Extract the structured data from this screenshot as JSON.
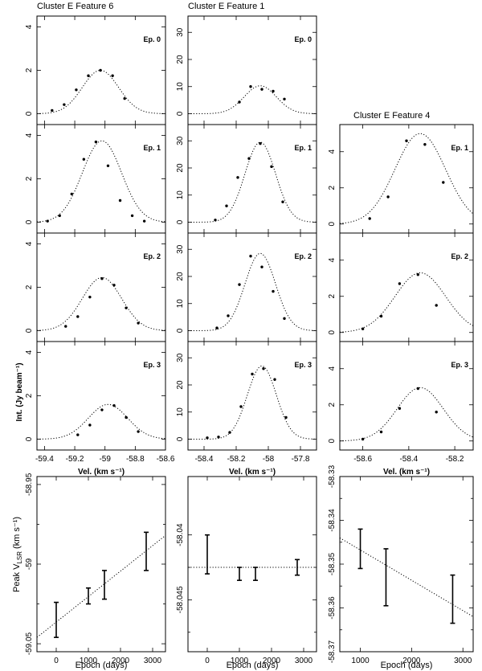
{
  "figure": {
    "ylabel_spectra": "Int. (Jy beam⁻¹)",
    "ylabel_velocity": "Peak V",
    "ylabel_velocity_sub": "LSR",
    "ylabel_velocity_unit": "(km s⁻¹)"
  },
  "chart_data": [
    {
      "type": "line",
      "group": "spectra",
      "column": 0,
      "title": "Cluster E    Feature 6",
      "xlabel": "Vel. (km s⁻¹)",
      "ylabel": "Int. (Jy beam⁻¹)",
      "xlim": [
        -59.45,
        -58.6
      ],
      "ylim": [
        -0.5,
        4.5
      ],
      "xticks": [
        -59.4,
        -59.2,
        -59,
        -58.8,
        -58.6
      ],
      "xticklabels": [
        "-59.4",
        "-59.2",
        "-59",
        "-58.8",
        "-58.6"
      ],
      "yticks": [
        0,
        2,
        4
      ],
      "yticklabels": [
        "0",
        "2",
        "4"
      ],
      "panels": [
        {
          "epoch": "Ep. 0",
          "amp": 2.0,
          "center": -59.03,
          "sigma": 0.12,
          "points_x": [
            -59.35,
            -59.27,
            -59.19,
            -59.11,
            -59.03,
            -58.95,
            -58.87
          ],
          "points_y": [
            0.15,
            0.42,
            1.1,
            1.75,
            2.0,
            1.75,
            0.7
          ]
        },
        {
          "epoch": "Ep. 1",
          "amp": 3.75,
          "center": -59.02,
          "sigma": 0.13,
          "points_x": [
            -59.38,
            -59.3,
            -59.22,
            -59.14,
            -59.06,
            -58.98,
            -58.9,
            -58.82,
            -58.74
          ],
          "points_y": [
            0.05,
            0.3,
            1.3,
            2.9,
            3.7,
            2.6,
            1.0,
            0.3,
            0.05
          ]
        },
        {
          "epoch": "Ep. 2",
          "amp": 2.45,
          "center": -59.02,
          "sigma": 0.13,
          "points_x": [
            -59.26,
            -59.18,
            -59.1,
            -59.02,
            -58.94,
            -58.86,
            -58.78
          ],
          "points_y": [
            0.2,
            0.65,
            1.55,
            2.4,
            2.1,
            1.05,
            0.35
          ]
        },
        {
          "epoch": "Ep. 3",
          "amp": 1.6,
          "center": -58.98,
          "sigma": 0.13,
          "points_x": [
            -59.18,
            -59.1,
            -59.02,
            -58.94,
            -58.86,
            -58.78
          ],
          "points_y": [
            0.2,
            0.65,
            1.35,
            1.55,
            1.0,
            0.35
          ]
        }
      ]
    },
    {
      "type": "line",
      "group": "spectra",
      "column": 1,
      "title": "Cluster E    Feature 1",
      "xlabel": "Vel. (km s⁻¹)",
      "ylabel": "Int. (Jy beam⁻¹)",
      "xlim": [
        -58.5,
        -57.7
      ],
      "ylim": [
        -4,
        36
      ],
      "xticks": [
        -58.4,
        -58.2,
        -58,
        -57.8
      ],
      "xticklabels": [
        "-58.4",
        "-58.2",
        "-58",
        "-57.8"
      ],
      "yticks": [
        0,
        10,
        20,
        30
      ],
      "yticklabels": [
        "0",
        "10",
        "20",
        "30"
      ],
      "panels": [
        {
          "epoch": "Ep. 0",
          "amp": 10.3,
          "center": -58.05,
          "sigma": 0.1,
          "points_x": [
            -58.18,
            -58.11,
            -58.04,
            -57.97,
            -57.9
          ],
          "points_y": [
            4.3,
            10.0,
            9.0,
            8.3,
            5.4
          ]
        },
        {
          "epoch": "Ep. 1",
          "amp": 29.5,
          "center": -58.05,
          "sigma": 0.095,
          "points_x": [
            -58.33,
            -58.26,
            -58.19,
            -58.12,
            -58.05,
            -57.98,
            -57.91
          ],
          "points_y": [
            0.8,
            6.0,
            16.5,
            23.5,
            29.0,
            20.5,
            7.5
          ]
        },
        {
          "epoch": "Ep. 2",
          "amp": 28.5,
          "center": -58.05,
          "sigma": 0.095,
          "points_x": [
            -58.32,
            -58.25,
            -58.18,
            -58.11,
            -58.04,
            -57.97,
            -57.9
          ],
          "points_y": [
            1.0,
            5.5,
            17.0,
            27.5,
            23.5,
            14.5,
            4.5
          ]
        },
        {
          "epoch": "Ep. 3",
          "amp": 27.0,
          "center": -58.04,
          "sigma": 0.09,
          "points_x": [
            -58.38,
            -58.31,
            -58.24,
            -58.17,
            -58.1,
            -58.03,
            -57.96,
            -57.89
          ],
          "points_y": [
            0.5,
            0.8,
            2.5,
            12.0,
            24.0,
            26.0,
            22.0,
            8.0
          ]
        }
      ]
    },
    {
      "type": "line",
      "group": "spectra",
      "column": 2,
      "title": "Cluster E    Feature 4",
      "xlabel": "Vel. (km s⁻¹)",
      "ylabel": "Int. (Jy beam⁻¹)",
      "xlim": [
        -58.7,
        -58.12
      ],
      "ylim": [
        -0.5,
        5.5
      ],
      "xticks": [
        -58.6,
        -58.4,
        -58.2
      ],
      "xticklabels": [
        "-58.6",
        "-58.4",
        "-58.2"
      ],
      "yticks": [
        0,
        2,
        4
      ],
      "yticklabels": [
        "0",
        "2",
        "4"
      ],
      "panels": [
        {
          "epoch": "Ep. 1",
          "amp": 5.0,
          "center": -58.35,
          "sigma": 0.11,
          "points_x": [
            -58.57,
            -58.49,
            -58.41,
            -58.33,
            -58.25
          ],
          "points_y": [
            0.3,
            1.5,
            4.6,
            4.4,
            2.3
          ]
        },
        {
          "epoch": "Ep. 2",
          "amp": 3.3,
          "center": -58.35,
          "sigma": 0.11,
          "points_x": [
            -58.6,
            -58.52,
            -58.44,
            -58.36,
            -58.28
          ],
          "points_y": [
            0.2,
            0.9,
            2.7,
            3.2,
            1.5
          ]
        },
        {
          "epoch": "Ep. 3",
          "amp": 2.95,
          "center": -58.35,
          "sigma": 0.1,
          "points_x": [
            -58.6,
            -58.52,
            -58.44,
            -58.36,
            -58.28
          ],
          "points_y": [
            0.1,
            0.5,
            1.8,
            2.9,
            1.6
          ]
        }
      ]
    },
    {
      "type": "scatter",
      "group": "velocity",
      "column": 0,
      "xlabel": "Epoch (days)",
      "ylabel": "Peak V LSR (km s⁻¹)",
      "xlim": [
        -600,
        3400
      ],
      "ylim": [
        -59.055,
        -58.945
      ],
      "xticks": [
        0,
        1000,
        2000,
        3000
      ],
      "xticklabels": [
        "0",
        "1000",
        "2000",
        "3000"
      ],
      "yticks": [
        -58.95,
        -58.975,
        -59,
        -59.025,
        -59.05
      ],
      "yticklabels": [
        "-58.95",
        "",
        "-59",
        "",
        "-59.05"
      ],
      "points": [
        {
          "x": 0,
          "y": -59.035,
          "err": 0.011
        },
        {
          "x": 1000,
          "y": -59.02,
          "err": 0.005
        },
        {
          "x": 1500,
          "y": -59.013,
          "err": 0.009
        },
        {
          "x": 2800,
          "y": -58.992,
          "err": 0.012
        }
      ],
      "fit": {
        "x": [
          -600,
          3400
        ],
        "y": [
          -59.046,
          -58.982
        ]
      }
    },
    {
      "type": "scatter",
      "group": "velocity",
      "column": 1,
      "xlabel": "Epoch (days)",
      "ylabel": "Peak V LSR (km s⁻¹)",
      "xlim": [
        -600,
        3400
      ],
      "ylim": [
        -58.049,
        -58.0355
      ],
      "xticks": [
        0,
        1000,
        2000,
        3000
      ],
      "xticklabels": [
        "0",
        "1000",
        "2000",
        "3000"
      ],
      "yticks": [
        -58.04,
        -58.0425,
        -58.045,
        -58.0475
      ],
      "yticklabels": [
        "-58.04",
        "",
        "-58.045",
        ""
      ],
      "points": [
        {
          "x": 0,
          "y": -58.0415,
          "err": 0.0015
        },
        {
          "x": 1000,
          "y": -58.043,
          "err": 0.0005
        },
        {
          "x": 1500,
          "y": -58.043,
          "err": 0.0005
        },
        {
          "x": 2800,
          "y": -58.0425,
          "err": 0.0006
        }
      ],
      "fit": {
        "x": [
          -600,
          3400
        ],
        "y": [
          -58.0425,
          -58.0425
        ]
      }
    },
    {
      "type": "scatter",
      "group": "velocity",
      "column": 2,
      "xlabel": "Epoch (days)",
      "ylabel": "Peak V LSR (km s⁻¹)",
      "xlim": [
        600,
        3200
      ],
      "ylim": [
        -58.37,
        -58.33
      ],
      "xticks": [
        1000,
        2000,
        3000
      ],
      "xticklabels": [
        "1000",
        "2000",
        "3000"
      ],
      "yticks": [
        -58.33,
        -58.335,
        -58.34,
        -58.345,
        -58.35,
        -58.355,
        -58.36,
        -58.365,
        -58.37
      ],
      "yticklabels": [
        "-58.33",
        "",
        "-58.34",
        "",
        "-58.35",
        "",
        "-58.36",
        "",
        "-58.37"
      ],
      "points": [
        {
          "x": 1000,
          "y": -58.3465,
          "err": 0.0045
        },
        {
          "x": 1500,
          "y": -58.353,
          "err": 0.0065
        },
        {
          "x": 2800,
          "y": -58.358,
          "err": 0.0055
        }
      ],
      "fit": {
        "x": [
          600,
          3200
        ],
        "y": [
          -58.344,
          -58.362
        ]
      }
    }
  ]
}
